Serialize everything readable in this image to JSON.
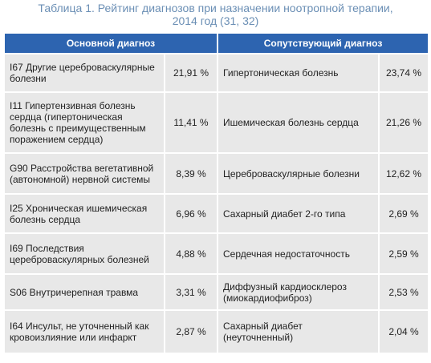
{
  "caption": {
    "prefix": "Таблица 1.",
    "line1": "Рейтинг диагнозов при назначении ноотропной терапии,",
    "line2": "2014 год (31, 32)"
  },
  "headers": {
    "primary": "Основной диагноз",
    "concomitant": "Сопутствующий диагноз"
  },
  "rows": [
    {
      "primary": "I67 Другие цереброваскулярные болезни",
      "primary_pct": "21,91 %",
      "concomitant": "Гипертоническая болезнь",
      "concomitant_pct": "23,74 %"
    },
    {
      "primary": "I11 Гипертензивная болезнь сердца (гипертоническая болезнь с преимущественным поражением сердца)",
      "primary_pct": "11,41 %",
      "concomitant": "Ишемическая болезнь сердца",
      "concomitant_pct": "21,26 %"
    },
    {
      "primary": "G90 Расстройства вегетативной (автономной) нервной системы",
      "primary_pct": "8,39 %",
      "concomitant": "Цереброваскулярные болезни",
      "concomitant_pct": "12,62 %"
    },
    {
      "primary": "I25 Хроническая ишемическая болезнь сердца",
      "primary_pct": "6,96 %",
      "concomitant": "Сахарный диабет 2-го типа",
      "concomitant_pct": "2,69 %"
    },
    {
      "primary": "I69 Последствия цереброваскулярных болезней",
      "primary_pct": "4,88 %",
      "concomitant": "Сердечная недостаточность",
      "concomitant_pct": "2,59 %"
    },
    {
      "primary": "S06 Внутричерепная травма",
      "primary_pct": "3,31 %",
      "concomitant": "Диффузный кардиосклероз (миокардиофиброз)",
      "concomitant_pct": "2,53 %"
    },
    {
      "primary": "I64 Инсульт, не уточненный как кровоизлияние или инфаркт",
      "primary_pct": "2,87 %",
      "concomitant": "Сахарный диабет (неуточненный)",
      "concomitant_pct": "2,04 %"
    }
  ]
}
